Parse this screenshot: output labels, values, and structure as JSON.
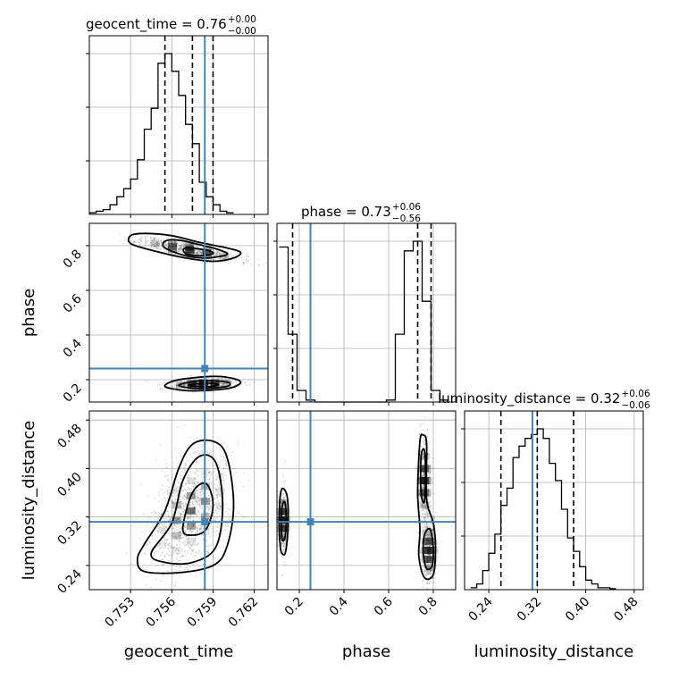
{
  "chart_data": {
    "type": "corner",
    "parameters": [
      "geocent_time",
      "phase",
      "luminosity_distance"
    ],
    "truths": {
      "geocent_time": 0.7584,
      "phase": 0.25,
      "luminosity_distance": 0.312
    },
    "titles": [
      {
        "param": "geocent_time",
        "text": "geocent_time = 0.76",
        "sup": "+0.00",
        "sub": "−0.00"
      },
      {
        "param": "phase",
        "text": "phase = 0.73",
        "sup": "+0.06",
        "sub": "−0.56"
      },
      {
        "param": "luminosity_distance",
        "text": "luminosity_distance = 0.32",
        "sup": "+0.06",
        "sub": "−0.06"
      }
    ],
    "axis_labels": {
      "geocent_time": "geocent_time",
      "phase": "phase",
      "luminosity_distance": "luminosity_distance"
    },
    "ranges": {
      "geocent_time": [
        0.75,
        0.763
      ],
      "phase": [
        0.1,
        0.9
      ],
      "luminosity_distance": [
        0.2,
        0.495
      ]
    },
    "ticks": {
      "geocent_time": [
        "0.753",
        "0.756",
        "0.759",
        "0.762"
      ],
      "phase": [
        "0.2",
        "0.4",
        "0.6",
        "0.8"
      ],
      "luminosity_distance": [
        "0.24",
        "0.32",
        "0.40",
        "0.48"
      ]
    },
    "quantiles": {
      "geocent_time": [
        0.7555,
        0.7575,
        0.759
      ],
      "phase": [
        0.17,
        0.73,
        0.79
      ],
      "luminosity_distance": [
        0.26,
        0.32,
        0.38
      ]
    },
    "hist1d": {
      "geocent_time": {
        "bin_edges_start": 0.75,
        "bin_width": 0.0005,
        "heights": [
          0.01,
          0.02,
          0.03,
          0.06,
          0.11,
          0.16,
          0.22,
          0.34,
          0.53,
          0.66,
          0.94,
          1.0,
          0.89,
          0.74,
          0.56,
          0.44,
          0.2,
          0.11,
          0.06,
          0.02,
          0.01
        ]
      },
      "phase": {
        "bin_edges_start": 0.11,
        "bin_width": 0.04,
        "heights": [
          0.8,
          0.35,
          0.06,
          0.01,
          0,
          0,
          0,
          0,
          0,
          0,
          0,
          0,
          0.01,
          0.35,
          0.78,
          0.83,
          0.52,
          0.06,
          0.01
        ]
      },
      "luminosity_distance": {
        "bin_edges_start": 0.21,
        "bin_width": 0.01,
        "heights": [
          0.01,
          0.03,
          0.1,
          0.19,
          0.29,
          0.44,
          0.53,
          0.69,
          0.75,
          0.79,
          0.81,
          0.84,
          0.79,
          0.66,
          0.57,
          0.42,
          0.27,
          0.2,
          0.12,
          0.05,
          0.03,
          0.01,
          0.01,
          0.005
        ]
      }
    },
    "grid": true,
    "contours": {
      "phase_vs_geocent_time": [
        {
          "param_x": "geocent_time",
          "param_y": "phase",
          "level": "outer",
          "points": [
            [
              0.753,
              0.845
            ],
            [
              0.754,
              0.855
            ],
            [
              0.756,
              0.845
            ],
            [
              0.758,
              0.815
            ],
            [
              0.76,
              0.79
            ],
            [
              0.761,
              0.77
            ],
            [
              0.7605,
              0.745
            ],
            [
              0.759,
              0.73
            ],
            [
              0.757,
              0.745
            ],
            [
              0.7545,
              0.78
            ],
            [
              0.753,
              0.81
            ]
          ]
        },
        {
          "param_x": "geocent_time",
          "param_y": "phase",
          "level": "mid",
          "points": [
            [
              0.7555,
              0.82
            ],
            [
              0.7565,
              0.825
            ],
            [
              0.758,
              0.805
            ],
            [
              0.7595,
              0.78
            ],
            [
              0.76,
              0.76
            ],
            [
              0.7585,
              0.745
            ],
            [
              0.757,
              0.755
            ],
            [
              0.7555,
              0.79
            ]
          ]
        },
        {
          "param_x": "geocent_time",
          "param_y": "phase",
          "level": "inner",
          "points": [
            [
              0.757,
              0.79
            ],
            [
              0.7585,
              0.78
            ],
            [
              0.759,
              0.765
            ],
            [
              0.758,
              0.755
            ],
            [
              0.757,
              0.765
            ]
          ]
        },
        {
          "param_x": "geocent_time",
          "param_y": "phase",
          "level": "outer",
          "points": [
            [
              0.7555,
              0.175
            ],
            [
              0.7565,
              0.2
            ],
            [
              0.759,
              0.215
            ],
            [
              0.7605,
              0.205
            ],
            [
              0.761,
              0.185
            ],
            [
              0.76,
              0.16
            ],
            [
              0.7575,
              0.15
            ],
            [
              0.756,
              0.16
            ]
          ]
        },
        {
          "param_x": "geocent_time",
          "param_y": "phase",
          "level": "mid",
          "points": [
            [
              0.7565,
              0.175
            ],
            [
              0.758,
              0.195
            ],
            [
              0.76,
              0.19
            ],
            [
              0.76,
              0.17
            ],
            [
              0.758,
              0.16
            ]
          ]
        },
        {
          "param_x": "geocent_time",
          "param_y": "phase",
          "level": "inner",
          "points": [
            [
              0.7572,
              0.175
            ],
            [
              0.7585,
              0.185
            ],
            [
              0.7594,
              0.178
            ],
            [
              0.7585,
              0.168
            ]
          ]
        }
      ],
      "luminosity_distance_vs_geocent_time": [
        {
          "param_x": "geocent_time",
          "param_y": "luminosity_distance",
          "level": "outer",
          "points": [
            [
              0.7535,
              0.25
            ],
            [
              0.754,
              0.275
            ],
            [
              0.7555,
              0.33
            ],
            [
              0.7565,
              0.4
            ],
            [
              0.7575,
              0.44
            ],
            [
              0.759,
              0.445
            ],
            [
              0.76,
              0.42
            ],
            [
              0.7605,
              0.34
            ],
            [
              0.76,
              0.27
            ],
            [
              0.759,
              0.24
            ],
            [
              0.7565,
              0.228
            ],
            [
              0.754,
              0.23
            ]
          ]
        },
        {
          "param_x": "geocent_time",
          "param_y": "luminosity_distance",
          "level": "mid",
          "points": [
            [
              0.7545,
              0.26
            ],
            [
              0.756,
              0.31
            ],
            [
              0.7568,
              0.38
            ],
            [
              0.758,
              0.42
            ],
            [
              0.7592,
              0.41
            ],
            [
              0.7597,
              0.34
            ],
            [
              0.7592,
              0.27
            ],
            [
              0.7575,
              0.245
            ],
            [
              0.7555,
              0.245
            ]
          ]
        },
        {
          "param_x": "geocent_time",
          "param_y": "luminosity_distance",
          "level": "inner",
          "points": [
            [
              0.7568,
              0.3
            ],
            [
              0.7575,
              0.36
            ],
            [
              0.7585,
              0.375
            ],
            [
              0.759,
              0.34
            ],
            [
              0.7585,
              0.3
            ],
            [
              0.7575,
              0.29
            ]
          ]
        }
      ],
      "luminosity_distance_vs_phase": [
        {
          "param_x": "phase",
          "param_y": "luminosity_distance",
          "level": "outer",
          "points": [
            [
              0.115,
              0.27
            ],
            [
              0.11,
              0.32
            ],
            [
              0.12,
              0.365
            ],
            [
              0.145,
              0.355
            ],
            [
              0.15,
              0.31
            ],
            [
              0.14,
              0.265
            ],
            [
              0.128,
              0.258
            ]
          ]
        },
        {
          "param_x": "phase",
          "param_y": "luminosity_distance",
          "level": "mid",
          "points": [
            [
              0.122,
              0.285
            ],
            [
              0.12,
              0.33
            ],
            [
              0.135,
              0.345
            ],
            [
              0.142,
              0.315
            ],
            [
              0.135,
              0.285
            ]
          ]
        },
        {
          "param_x": "phase",
          "param_y": "luminosity_distance",
          "level": "outer",
          "points": [
            [
              0.74,
              0.445
            ],
            [
              0.73,
              0.36
            ],
            [
              0.74,
              0.3
            ],
            [
              0.735,
              0.255
            ],
            [
              0.76,
              0.22
            ],
            [
              0.8,
              0.225
            ],
            [
              0.81,
              0.27
            ],
            [
              0.8,
              0.31
            ],
            [
              0.77,
              0.35
            ],
            [
              0.77,
              0.44
            ],
            [
              0.755,
              0.455
            ]
          ]
        },
        {
          "param_x": "phase",
          "param_y": "luminosity_distance",
          "level": "mid",
          "points": [
            [
              0.745,
              0.42
            ],
            [
              0.745,
              0.36
            ],
            [
              0.76,
              0.345
            ],
            [
              0.765,
              0.39
            ],
            [
              0.76,
              0.43
            ]
          ]
        },
        {
          "param_x": "phase",
          "param_y": "luminosity_distance",
          "level": "mid",
          "points": [
            [
              0.755,
              0.26
            ],
            [
              0.77,
              0.235
            ],
            [
              0.795,
              0.24
            ],
            [
              0.8,
              0.27
            ],
            [
              0.785,
              0.3
            ],
            [
              0.76,
              0.29
            ]
          ]
        }
      ]
    }
  }
}
